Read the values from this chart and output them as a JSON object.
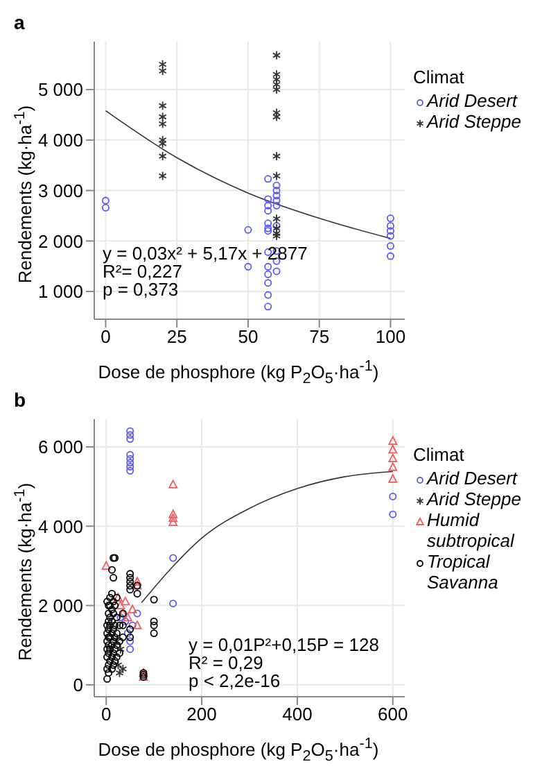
{
  "chart_data": [
    {
      "type": "scatter",
      "title": "a",
      "xlabel": "Dose de phosphore (kg P$_{2}$O$_{5}$·ha$^{-1}$)",
      "ylabel": "Rendements (kg·ha$^{-1}$)",
      "legend_title": "Climat",
      "legend": "right",
      "grid": true,
      "xlim": [
        -4,
        105
      ],
      "xticks": [
        0,
        25,
        50,
        75,
        100
      ],
      "ylim": [
        450,
        5950
      ],
      "yticks": [
        {
          "value": 1000,
          "label": "1 000"
        },
        {
          "value": 2000,
          "label": "2 000"
        },
        {
          "value": 3000,
          "label": "3 000"
        },
        {
          "value": 4000,
          "label": "4 000"
        },
        {
          "value": 5000,
          "label": "5 000"
        }
      ],
      "annotations": [
        "y = 0,03x² + 5,17x + 2877",
        "R²= 0,227",
        "p = 0,373"
      ],
      "series": [
        {
          "name": "Arid Desert",
          "color": "#5a5af0",
          "marker": "circle",
          "x": [
            0,
            0,
            50,
            50,
            57,
            57,
            57,
            57,
            57,
            57,
            57,
            57,
            57,
            57,
            57,
            57,
            57,
            60,
            60,
            60,
            60,
            60,
            60,
            60,
            60,
            60,
            100,
            100,
            100,
            100,
            100,
            100
          ],
          "values": [
            2800,
            2660,
            2220,
            1490,
            3230,
            2830,
            2700,
            2600,
            2350,
            2250,
            2200,
            1780,
            1490,
            1340,
            1170,
            930,
            700,
            3100,
            3000,
            2900,
            2800,
            2700,
            2300,
            1800,
            1600,
            1400,
            2450,
            2300,
            2200,
            2100,
            1900,
            1700
          ]
        },
        {
          "name": "Arid Steppe",
          "color": "#333333",
          "marker": "cross",
          "x": [
            20,
            20,
            20,
            20,
            20,
            20,
            20,
            20,
            20,
            60,
            60,
            60,
            60,
            60,
            60,
            60,
            60,
            60,
            60,
            60,
            60,
            60
          ],
          "values": [
            5500,
            5370,
            4680,
            4460,
            4320,
            4000,
            3930,
            3680,
            3290,
            5680,
            5300,
            5200,
            5100,
            5000,
            4540,
            4460,
            3680,
            3290,
            2440,
            2250,
            2150,
            2100
          ]
        },
        {
          "type": "line",
          "color": "#333333",
          "x": [
            0,
            25,
            50,
            75,
            100
          ],
          "values": [
            4580,
            3650,
            2950,
            2450,
            2050
          ]
        }
      ]
    },
    {
      "type": "scatter",
      "title": "b",
      "xlabel": "Dose de phosphore (kg P$_{2}$O$_{5}$·ha$^{-1}$)",
      "ylabel": "Rendements (kg·ha$^{-1}$)",
      "legend_title": "Climat",
      "legend": "right",
      "grid": true,
      "xlim": [
        -25,
        625
      ],
      "xticks": [
        0,
        200,
        400,
        600
      ],
      "ylim": [
        -300,
        6700
      ],
      "yticks": [
        0,
        {
          "value": 2000,
          "label": "2 000"
        },
        {
          "value": 4000,
          "label": "4 000"
        },
        {
          "value": 6000,
          "label": "6 000"
        }
      ],
      "annotations": [
        "y = 0,01P²+0,15P = 128",
        "R² = 0,29",
        "p < 2,2e-16"
      ],
      "series": [
        {
          "name": "Arid Desert",
          "color": "#5a5af0",
          "marker": "circle",
          "x": [
            50,
            50,
            50,
            50,
            50,
            50,
            50,
            50,
            30,
            40,
            45,
            50,
            50,
            55,
            65,
            140,
            140,
            600,
            600
          ],
          "values": [
            6400,
            6300,
            6200,
            5800,
            5700,
            5600,
            5500,
            5400,
            1700,
            1600,
            1300,
            1100,
            900,
            1500,
            1800,
            3200,
            2050,
            4750,
            4300
          ]
        },
        {
          "name": "Arid Steppe",
          "color": "#333333",
          "marker": "cross",
          "x": [
            25,
            30,
            35,
            22,
            28
          ],
          "values": [
            500,
            900,
            400,
            1100,
            300
          ]
        },
        {
          "name": "Humid subtropical",
          "color": "#f05a5a",
          "marker": "triangle",
          "x": [
            0,
            25,
            30,
            35,
            40,
            45,
            55,
            65,
            65,
            65,
            78,
            78,
            140,
            140,
            140,
            140,
            600,
            600,
            600,
            600,
            600
          ],
          "values": [
            3000,
            2200,
            2000,
            1800,
            2100,
            1700,
            1900,
            2600,
            2500,
            1500,
            300,
            200,
            5050,
            4300,
            4200,
            4100,
            6150,
            5930,
            5710,
            5490,
            5190
          ]
        },
        {
          "name": "Tropical Savanna",
          "color": "#000000",
          "marker": "circle",
          "x": [
            2,
            2,
            2,
            2,
            2,
            2,
            2,
            2,
            5,
            5,
            5,
            5,
            5,
            5,
            5,
            5,
            5,
            8,
            8,
            8,
            8,
            8,
            8,
            8,
            12,
            12,
            12,
            12,
            12,
            12,
            12,
            12,
            15,
            15,
            15,
            15,
            15,
            15,
            15,
            15,
            18,
            18,
            18,
            18,
            18,
            18,
            22,
            22,
            22,
            22,
            22,
            28,
            28,
            28,
            35,
            35,
            35,
            50,
            50,
            50,
            50,
            50,
            50,
            50,
            65,
            65,
            78,
            78,
            78,
            100,
            100,
            100,
            100
          ],
          "values": [
            150,
            400,
            700,
            900,
            1100,
            1300,
            1500,
            2100,
            300,
            500,
            800,
            1000,
            1200,
            1400,
            1600,
            1800,
            2000,
            600,
            900,
            1200,
            1500,
            1700,
            2000,
            2200,
            400,
            700,
            1000,
            1300,
            1600,
            1900,
            2300,
            2900,
            500,
            800,
            1100,
            1400,
            1800,
            2100,
            2700,
            3200,
            600,
            900,
            1200,
            1500,
            2000,
            3200,
            700,
            1000,
            1300,
            1700,
            2200,
            800,
            1100,
            1500,
            1200,
            1500,
            1800,
            2800,
            2700,
            2600,
            2500,
            2400,
            1400,
            1200,
            2500,
            2300,
            300,
            200,
            250,
            2150,
            1600,
            1500,
            1300
          ]
        },
        {
          "type": "line",
          "color": "#333333",
          "x": [
            74,
            140,
            200,
            300,
            400,
            500,
            600
          ],
          "values": [
            2070,
            2990,
            3700,
            4450,
            4950,
            5250,
            5380
          ]
        }
      ]
    }
  ]
}
